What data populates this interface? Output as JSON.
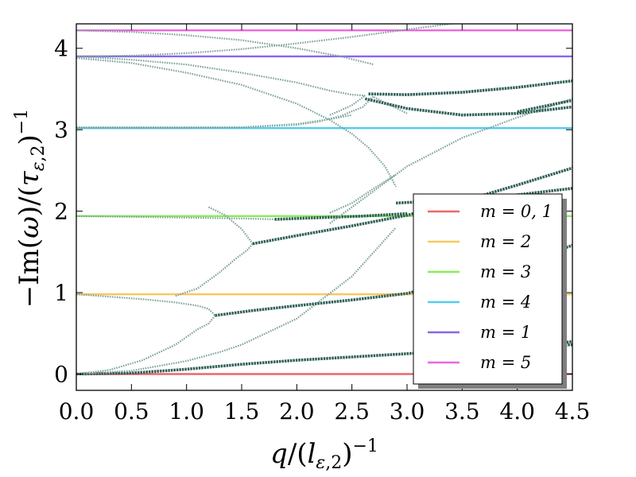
{
  "chart_data": {
    "type": "line",
    "title": "",
    "xlabel": "q/(l_{ε,2})^{-1}",
    "ylabel": "−Im(ω)/(τ_{ε,2})^{-1}",
    "xlim": [
      0,
      4.5
    ],
    "ylim": [
      -0.2,
      4.3
    ],
    "xticks": [
      0,
      0.5,
      1,
      1.5,
      2,
      2.5,
      3,
      3.5,
      4,
      4.5
    ],
    "xtick_labels": [
      "0.0",
      "0.5",
      "1.0",
      "1.5",
      "2.0",
      "2.5",
      "3.0",
      "3.5",
      "4.0",
      "4.5"
    ],
    "yticks": [
      0,
      1,
      2,
      3,
      4
    ],
    "ytick_labels": [
      "0",
      "1",
      "2",
      "3",
      "4"
    ],
    "grid": false,
    "legend_position": "lower-right",
    "hlines": [
      {
        "name": "m = 0, 1",
        "y": 0.0,
        "color": "#ee6666"
      },
      {
        "name": "m = 2",
        "y": 0.98,
        "color": "#f8c860"
      },
      {
        "name": "m = 3",
        "y": 1.94,
        "color": "#88ee55"
      },
      {
        "name": "m = 4",
        "y": 3.02,
        "color": "#55ccee"
      },
      {
        "name": "m = 1",
        "y": 3.9,
        "color": "#8866ee"
      },
      {
        "name": "m = 5",
        "y": 4.22,
        "color": "#ee66dd"
      }
    ],
    "series": [
      {
        "style": "dark",
        "x": [
          0,
          0.5,
          1,
          1.5,
          2,
          2.5,
          3,
          3.5,
          4,
          4.5
        ],
        "y": [
          0,
          0.012,
          0.06,
          0.12,
          0.17,
          0.21,
          0.25,
          0.29,
          0.33,
          0.36
        ]
      },
      {
        "style": "dark",
        "x": [
          3.8,
          4.0,
          4.2,
          4.5
        ],
        "y": [
          0.25,
          0.29,
          0.34,
          0.4
        ]
      },
      {
        "style": "light",
        "x": [
          0,
          0.5,
          1,
          1.3,
          1.5,
          2,
          2.5,
          2.9
        ],
        "y": [
          0,
          0.04,
          0.16,
          0.27,
          0.36,
          0.68,
          1.2,
          1.8
        ]
      },
      {
        "style": "light",
        "x": [
          0,
          0.3,
          0.6,
          0.9,
          1.1,
          1.2,
          1.26
        ],
        "y": [
          0,
          0.05,
          0.17,
          0.36,
          0.55,
          0.62,
          0.72
        ]
      },
      {
        "style": "light",
        "x": [
          0,
          0.3,
          0.6,
          0.9,
          1.1,
          1.2,
          1.26
        ],
        "y": [
          0.98,
          0.95,
          0.92,
          0.88,
          0.84,
          0.8,
          0.72
        ]
      },
      {
        "style": "dark",
        "x": [
          1.26,
          1.6,
          2,
          2.5,
          3,
          3.5,
          4,
          4.5
        ],
        "y": [
          0.72,
          0.78,
          0.84,
          0.91,
          0.99,
          1.15,
          1.35,
          1.58
        ]
      },
      {
        "style": "light",
        "x": [
          0.9,
          1.1,
          1.3,
          1.45,
          1.55,
          1.6
        ],
        "y": [
          0.96,
          1.05,
          1.25,
          1.42,
          1.52,
          1.6
        ]
      },
      {
        "style": "light",
        "x": [
          1.2,
          1.35,
          1.5,
          1.6
        ],
        "y": [
          2.05,
          1.95,
          1.78,
          1.6
        ]
      },
      {
        "style": "dark",
        "x": [
          1.6,
          2,
          2.5,
          3,
          3.5,
          4,
          4.5
        ],
        "y": [
          1.6,
          1.7,
          1.82,
          1.95,
          2.12,
          2.32,
          2.53
        ]
      },
      {
        "style": "light",
        "x": [
          0,
          0.5,
          1,
          1.5,
          1.8
        ],
        "y": [
          1.94,
          1.93,
          1.92,
          1.91,
          1.9
        ]
      },
      {
        "style": "dark",
        "x": [
          1.8,
          2.2,
          2.6,
          3
        ],
        "y": [
          1.9,
          1.92,
          1.94,
          1.97
        ]
      },
      {
        "style": "light",
        "x": [
          2.7,
          2.85,
          3
        ],
        "y": [
          3.4,
          3.3,
          3.2
        ]
      },
      {
        "style": "dark",
        "x": [
          2.9,
          3.2,
          3.6,
          4,
          4.5
        ],
        "y": [
          2.1,
          2.12,
          2.15,
          2.2,
          2.28
        ]
      },
      {
        "style": "light",
        "x": [
          2.3,
          2.5,
          2.7,
          2.9
        ],
        "y": [
          1.98,
          2.1,
          2.28,
          2.45
        ]
      },
      {
        "style": "light",
        "x": [
          0,
          0.5,
          1,
          1.5,
          2,
          2.2,
          2.4,
          2.6,
          2.7
        ],
        "y": [
          3.02,
          3.02,
          3.02,
          3.03,
          3.06,
          3.1,
          3.17,
          3.28,
          3.42
        ]
      },
      {
        "style": "light",
        "x": [
          0,
          0.5,
          1,
          1.5,
          2,
          2.3,
          2.5
        ],
        "y": [
          3.03,
          3.03,
          3.03,
          3.03,
          3.07,
          3.13,
          3.18
        ]
      },
      {
        "style": "light",
        "x": [
          2.3,
          2.5,
          2.62
        ],
        "y": [
          3.18,
          3.3,
          3.42
        ]
      },
      {
        "style": "light",
        "x": [
          0,
          0.5,
          1,
          1.5,
          2,
          2.3,
          2.5,
          2.62
        ],
        "y": [
          3.9,
          3.86,
          3.8,
          3.7,
          3.58,
          3.48,
          3.43,
          3.42
        ]
      },
      {
        "style": "light",
        "x": [
          0,
          0.5,
          1,
          1.5,
          2,
          2.3,
          2.5,
          2.65,
          2.8,
          2.9
        ],
        "y": [
          3.88,
          3.82,
          3.7,
          3.55,
          3.32,
          3.12,
          2.95,
          2.78,
          2.55,
          2.3
        ]
      },
      {
        "style": "light",
        "x": [
          2.3,
          2.6,
          3,
          3.5,
          4,
          4.5
        ],
        "y": [
          1.85,
          2.15,
          2.55,
          2.9,
          3.15,
          3.38
        ]
      },
      {
        "style": "dark",
        "x": [
          2.65,
          3,
          3.5,
          4,
          4.5
        ],
        "y": [
          3.44,
          3.43,
          3.46,
          3.52,
          3.6
        ]
      },
      {
        "style": "dark",
        "x": [
          2.62,
          3,
          3.5,
          4,
          4.5
        ],
        "y": [
          3.38,
          3.26,
          3.18,
          3.2,
          3.28
        ]
      },
      {
        "style": "dark",
        "x": [
          4.0,
          4.5
        ],
        "y": [
          3.22,
          3.36
        ]
      },
      {
        "style": "light",
        "x": [
          0,
          0.5,
          1,
          1.5,
          2,
          2.5,
          3,
          3.5
        ],
        "y": [
          3.9,
          3.91,
          3.94,
          3.99,
          4.06,
          4.14,
          4.23,
          4.32
        ]
      },
      {
        "style": "light",
        "x": [
          0,
          0.5,
          1,
          1.5,
          2,
          2.4,
          2.7
        ],
        "y": [
          4.22,
          4.2,
          4.16,
          4.1,
          4.0,
          3.9,
          3.8
        ]
      }
    ]
  },
  "legend": {
    "items": [
      {
        "label": "m = 0, 1",
        "color": "#ee6666"
      },
      {
        "label": "m = 2",
        "color": "#f8c860"
      },
      {
        "label": "m = 3",
        "color": "#88ee55"
      },
      {
        "label": "m = 4",
        "color": "#55ccee"
      },
      {
        "label": "m = 1",
        "color": "#8866ee"
      },
      {
        "label": "m = 5",
        "color": "#ee66dd"
      }
    ]
  },
  "colors": {
    "dark_markers": "#2f5f57",
    "light_markers": "#7fa39d"
  }
}
